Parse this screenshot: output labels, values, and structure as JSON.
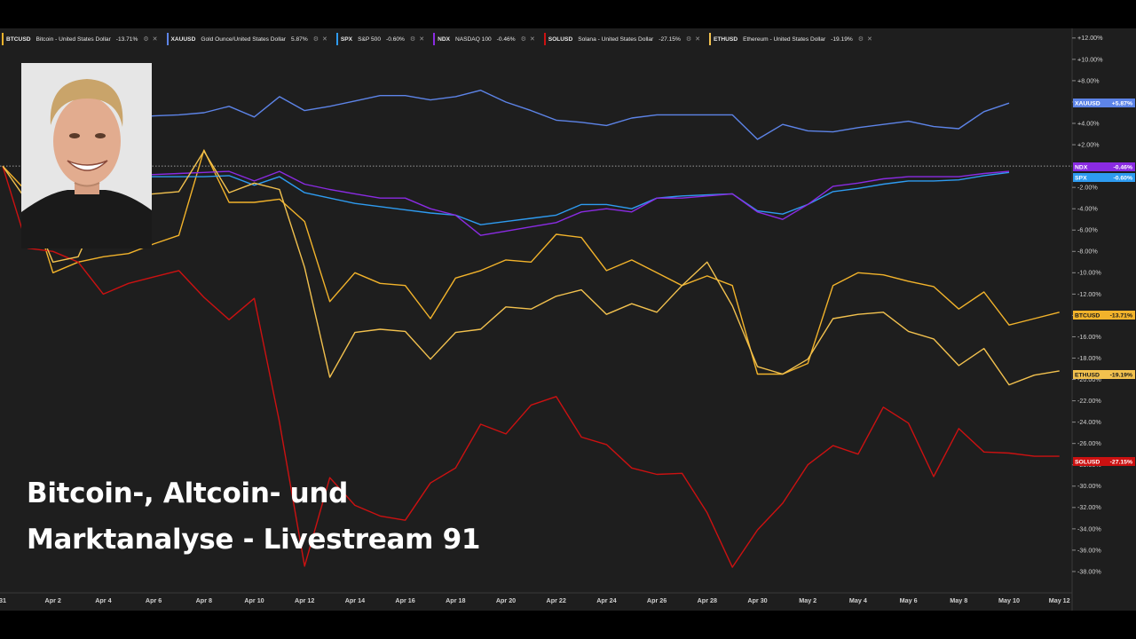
{
  "caption": {
    "line1": "Bitcoin-, Altcoin- und",
    "line2": "Marktanalyse - Livestream 91"
  },
  "colors": {
    "background": "#1e1e1e",
    "BTCUSD": "#f2b32b",
    "XAUUSD": "#5d84e8",
    "SPX": "#2e9bf0",
    "NDX": "#8a2be2",
    "SOLUSD": "#cc1111",
    "ETHUSD": "#f2c14e"
  },
  "legend": [
    {
      "symbol": "BTCUSD",
      "description": "Bitcoin - United States Dollar",
      "change": "-13.71%"
    },
    {
      "symbol": "XAUUSD",
      "description": "Gold Ounce/United States Dollar",
      "change": "5.87%"
    },
    {
      "symbol": "SPX",
      "description": "S&P 500",
      "change": "-0.60%"
    },
    {
      "symbol": "NDX",
      "description": "NASDAQ 100",
      "change": "-0.46%"
    },
    {
      "symbol": "SOLUSD",
      "description": "Solana - United States Dollar",
      "change": "-27.15%"
    },
    {
      "symbol": "ETHUSD",
      "description": "Ethereum - United States Dollar",
      "change": "-19.19%"
    }
  ],
  "chart_data": {
    "type": "line",
    "title": "",
    "xlabel": "",
    "ylabel": "",
    "ylim": [
      -40,
      12.9
    ],
    "y_ticks": [
      "+12.00%",
      "+10.00%",
      "+8.00%",
      "+6.00%",
      "+4.00%",
      "+2.00%",
      "-2.00%",
      "-4.00%",
      "-6.00%",
      "-8.00%",
      "-10.00%",
      "-12.00%",
      "-14.00%",
      "-16.00%",
      "-18.00%",
      "-20.00%",
      "-22.00%",
      "-24.00%",
      "-26.00%",
      "-28.00%",
      "-30.00%",
      "-32.00%",
      "-34.00%",
      "-36.00%",
      "-38.00%"
    ],
    "y_tick_values": [
      12,
      10,
      8,
      6,
      4,
      2,
      -2,
      -4,
      -6,
      -8,
      -10,
      -12,
      -14,
      -16,
      -18,
      -20,
      -22,
      -24,
      -26,
      -28,
      -30,
      -32,
      -34,
      -36,
      -38
    ],
    "x_ticks": [
      "31",
      "Apr 2",
      "Apr 4",
      "Apr 6",
      "Apr 8",
      "Apr 10",
      "Apr 12",
      "Apr 14",
      "Apr 16",
      "Apr 18",
      "Apr 20",
      "Apr 22",
      "Apr 24",
      "Apr 26",
      "Apr 28",
      "Apr 30",
      "May 2",
      "May 4",
      "May 6",
      "May 8",
      "May 10",
      "May 12"
    ],
    "x_tick_days": [
      0,
      2,
      4,
      6,
      8,
      10,
      12,
      14,
      16,
      18,
      20,
      22,
      24,
      26,
      28,
      30,
      32,
      34,
      36,
      38,
      40,
      42
    ],
    "zero_line": 0,
    "series": [
      {
        "name": "BTCUSD",
        "end_label": "-13.71%",
        "x": [
          0,
          1,
          2,
          3,
          4,
          5,
          6,
          7,
          8,
          9,
          10,
          11,
          12,
          13,
          14,
          15,
          16,
          17,
          18,
          19,
          20,
          21,
          22,
          23,
          24,
          25,
          26,
          27,
          28,
          29,
          30,
          31,
          32,
          33,
          34,
          35,
          36,
          37,
          38,
          39,
          40,
          41,
          42
        ],
        "values": [
          0,
          -2.5,
          -10,
          -9,
          -8.5,
          -8.2,
          -7.3,
          -6.5,
          1.5,
          -3.4,
          -3.4,
          -3.1,
          -5.2,
          -12.7,
          -10,
          -11,
          -11.2,
          -14.3,
          -10.5,
          -9.8,
          -8.8,
          -9,
          -6.4,
          -6.7,
          -9.8,
          -8.8,
          -10,
          -11.2,
          -10.3,
          -11.2,
          -19.5,
          -19.5,
          -18.5,
          -11.2,
          -10,
          -10.2,
          -10.8,
          -11.3,
          -13.4,
          -11.8,
          -14.9,
          -14.3,
          -13.7
        ]
      },
      {
        "name": "XAUUSD",
        "end_label": "+5.87%",
        "x": [
          5,
          6,
          7,
          8,
          9,
          10,
          11,
          12,
          13,
          14,
          15,
          16,
          17,
          18,
          19,
          20,
          21,
          22,
          23,
          24,
          25,
          26,
          27,
          28,
          29,
          30,
          31,
          32,
          33,
          34,
          35,
          36,
          37,
          38,
          39,
          40
        ],
        "values": [
          4.5,
          4.7,
          4.8,
          5,
          5.6,
          4.6,
          6.5,
          5.2,
          5.6,
          6.1,
          6.6,
          6.6,
          6.2,
          6.5,
          7.1,
          6,
          5.2,
          4.3,
          4.1,
          3.8,
          4.5,
          4.8,
          4.8,
          4.8,
          4.8,
          2.5,
          3.9,
          3.3,
          3.2,
          3.6,
          3.9,
          4.2,
          3.7,
          3.5,
          5.1,
          5.9
        ]
      },
      {
        "name": "SPX",
        "end_label": "-0.60%",
        "x": [
          5,
          6,
          7,
          8,
          9,
          10,
          11,
          12,
          13,
          14,
          15,
          16,
          17,
          18,
          19,
          20,
          21,
          22,
          23,
          24,
          25,
          26,
          27,
          28,
          29,
          30,
          31,
          32,
          33,
          34,
          35,
          36,
          37,
          38,
          39,
          40
        ],
        "values": [
          -1,
          -1,
          -1,
          -1,
          -0.9,
          -1.8,
          -1,
          -2.5,
          -3,
          -3.5,
          -3.8,
          -4.1,
          -4.4,
          -4.6,
          -5.5,
          -5.2,
          -4.9,
          -4.6,
          -3.6,
          -3.6,
          -4,
          -3,
          -2.8,
          -2.7,
          -2.6,
          -4.2,
          -4.5,
          -3.6,
          -2.4,
          -2.1,
          -1.7,
          -1.4,
          -1.4,
          -1.3,
          -0.9,
          -0.6
        ]
      },
      {
        "name": "NDX",
        "end_label": "-0.46%",
        "x": [
          5,
          6,
          7,
          8,
          9,
          10,
          11,
          12,
          13,
          14,
          15,
          16,
          17,
          18,
          19,
          20,
          21,
          22,
          23,
          24,
          25,
          26,
          27,
          28,
          29,
          30,
          31,
          32,
          33,
          34,
          35,
          36,
          37,
          38,
          39,
          40
        ],
        "values": [
          -0.8,
          -0.8,
          -0.7,
          -0.6,
          -0.5,
          -1.4,
          -0.5,
          -1.7,
          -2.2,
          -2.6,
          -3,
          -3,
          -4,
          -4.6,
          -6.5,
          -6.1,
          -5.7,
          -5.3,
          -4.3,
          -4,
          -4.3,
          -3,
          -3,
          -2.8,
          -2.6,
          -4.3,
          -5,
          -3.6,
          -1.9,
          -1.6,
          -1.2,
          -1,
          -1,
          -1,
          -0.7,
          -0.5
        ]
      },
      {
        "name": "SOLUSD",
        "end_label": "-27.15%",
        "x": [
          0,
          1,
          2,
          3,
          4,
          5,
          6,
          7,
          8,
          9,
          10,
          11,
          12,
          13,
          14,
          15,
          16,
          17,
          18,
          19,
          20,
          21,
          22,
          23,
          24,
          25,
          26,
          27,
          28,
          29,
          30,
          31,
          32,
          33,
          34,
          35,
          36,
          37,
          38,
          39,
          40,
          41,
          42
        ],
        "values": [
          0,
          -7.7,
          -8,
          -9,
          -12,
          -11,
          -10.4,
          -9.8,
          -12.3,
          -14.4,
          -12.4,
          -24,
          -37.5,
          -29.2,
          -31.8,
          -32.8,
          -33.2,
          -29.7,
          -28.3,
          -24.2,
          -25.1,
          -22.4,
          -21.6,
          -25.4,
          -26.1,
          -28.3,
          -28.9,
          -28.8,
          -32.5,
          -37.6,
          -34.1,
          -31.6,
          -28,
          -26.2,
          -27,
          -22.6,
          -24.1,
          -29.1,
          -24.6,
          -26.8,
          -26.9,
          -27.2,
          -27.2
        ]
      },
      {
        "name": "ETHUSD",
        "end_label": "-19.19%",
        "x": [
          0,
          1,
          2,
          3,
          4,
          5,
          6,
          7,
          8,
          9,
          10,
          11,
          12,
          13,
          14,
          15,
          16,
          17,
          18,
          19,
          20,
          21,
          22,
          23,
          24,
          25,
          26,
          27,
          28,
          29,
          30,
          31,
          32,
          33,
          34,
          35,
          36,
          37,
          38,
          39,
          40,
          41,
          42
        ],
        "values": [
          0,
          -3.4,
          -9,
          -8.5,
          -3.3,
          -2.8,
          -2.6,
          -2.4,
          1.4,
          -2.5,
          -1.6,
          -2.2,
          -9.5,
          -19.8,
          -15.6,
          -15.3,
          -15.5,
          -18.1,
          -15.6,
          -15.3,
          -13.2,
          -13.4,
          -12.2,
          -11.6,
          -13.9,
          -12.9,
          -13.7,
          -11.2,
          -9,
          -13.1,
          -18.8,
          -19.5,
          -18.1,
          -14.3,
          -13.9,
          -13.7,
          -15.5,
          -16.2,
          -18.7,
          -17.1,
          -20.5,
          -19.6,
          -19.2
        ]
      }
    ]
  }
}
